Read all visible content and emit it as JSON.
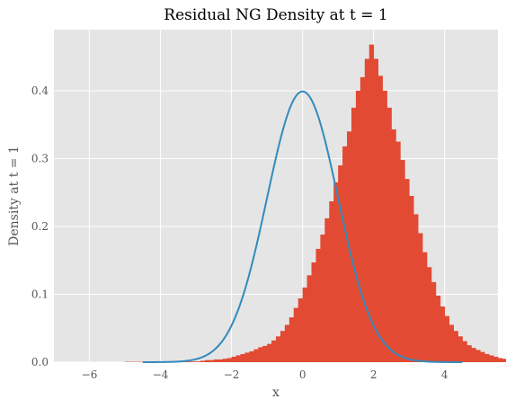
{
  "chart_data": {
    "type": "bar",
    "title": "Residual NG Density at t = 1",
    "xlabel": "x",
    "ylabel": "Density at t = 1",
    "xlim": [
      -7.0,
      5.5
    ],
    "ylim": [
      0.0,
      0.49
    ],
    "xticks": [
      -6,
      -4,
      -2,
      0,
      2,
      4
    ],
    "yticks": [
      0.0,
      0.1,
      0.2,
      0.3,
      0.4
    ],
    "grid": true,
    "background_color": "#e5e5e5",
    "grid_color": "#ffffff",
    "series": [
      {
        "type": "histogram",
        "color": "#e24a33",
        "bin_width": 0.125,
        "bin_start": -5.0,
        "values": [
          0.0005,
          0.0005,
          0.0005,
          0.0005,
          0.0005,
          0.0005,
          0.0005,
          0.0005,
          0.0005,
          0.0005,
          0.0005,
          0.0005,
          0.001,
          0.001,
          0.001,
          0.001,
          0.001,
          0.002,
          0.003,
          0.003,
          0.004,
          0.004,
          0.005,
          0.006,
          0.008,
          0.01,
          0.012,
          0.014,
          0.016,
          0.019,
          0.022,
          0.024,
          0.027,
          0.032,
          0.038,
          0.046,
          0.055,
          0.066,
          0.08,
          0.094,
          0.11,
          0.128,
          0.147,
          0.167,
          0.188,
          0.212,
          0.237,
          0.265,
          0.29,
          0.318,
          0.34,
          0.375,
          0.4,
          0.42,
          0.447,
          0.468,
          0.447,
          0.422,
          0.4,
          0.375,
          0.343,
          0.325,
          0.298,
          0.27,
          0.245,
          0.218,
          0.19,
          0.162,
          0.14,
          0.118,
          0.098,
          0.082,
          0.068,
          0.055,
          0.046,
          0.038,
          0.031,
          0.025,
          0.021,
          0.018,
          0.015,
          0.012,
          0.01,
          0.008,
          0.006,
          0.005,
          0.004,
          0.003,
          0.003,
          0.002,
          0.002,
          0.001,
          0.001,
          0.001,
          0.001,
          0.001,
          0.001,
          0.0005,
          0.0005,
          0.0005
        ]
      },
      {
        "type": "line",
        "color": "#348abd",
        "function": "standard-normal-pdf",
        "x_range": [
          -4.5,
          4.5
        ]
      }
    ]
  }
}
